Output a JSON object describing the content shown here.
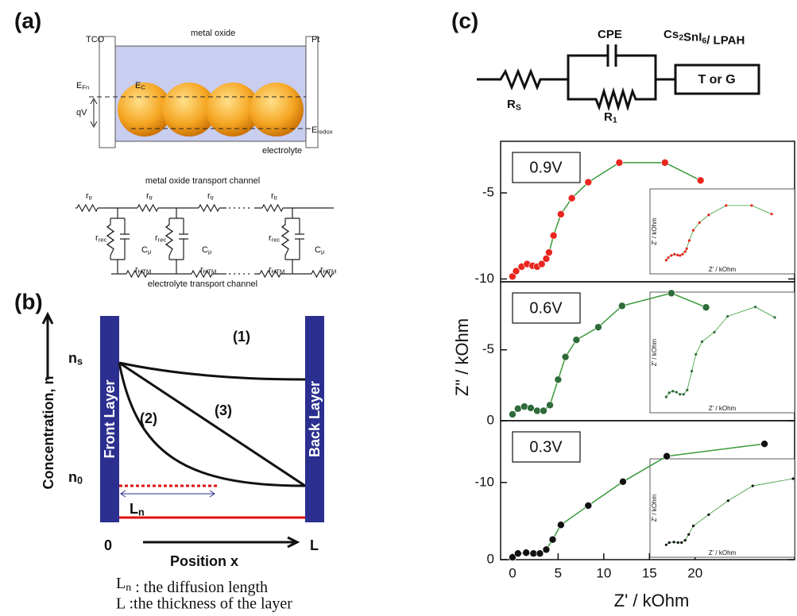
{
  "panel_a": {
    "tag": "(a)",
    "labels": [
      {
        "text": "TCO"
      },
      {
        "text": "metal oxide"
      },
      {
        "text": "Pt"
      },
      {
        "text": "E",
        "sub": "Fn"
      },
      {
        "text": "E",
        "sub": "C"
      },
      {
        "text": "qV"
      },
      {
        "text": "E",
        "sub": "redox"
      },
      {
        "text": "electrolyte"
      },
      {
        "text": "metal oxide transport channel"
      },
      {
        "text": "electrolyte transport channel"
      },
      {
        "text": "r",
        "sub": "tr"
      },
      {
        "text": "r",
        "sub": "tr"
      },
      {
        "text": "r",
        "sub": "tr"
      },
      {
        "text": "r",
        "sub": "tr"
      },
      {
        "text": "r",
        "sub": "rec"
      },
      {
        "text": "r",
        "sub": "rec"
      },
      {
        "text": "r",
        "sub": "rec"
      },
      {
        "text": "C",
        "sub": "μ"
      },
      {
        "text": "C",
        "sub": "μ"
      },
      {
        "text": "C",
        "sub": "μ"
      },
      {
        "text": "r",
        "sub": "HTM"
      },
      {
        "text": "r",
        "sub": "HTM"
      },
      {
        "text": "r",
        "sub": "HTM"
      },
      {
        "text": "r",
        "sub": "HTM"
      }
    ]
  },
  "panel_b": {
    "tag": "(b)",
    "ylabel": "Concentration, n",
    "n_s": {
      "text": "n",
      "sub": "s"
    },
    "n_0": {
      "text": "n",
      "sub": "0"
    },
    "front": "Front Layer",
    "back": "Back Layer",
    "curve_1": "(1)",
    "curve_2": "(2)",
    "curve_3": "(3)",
    "l_n": {
      "text": "L",
      "sub": "n"
    },
    "x_start": "0",
    "x_end": "L",
    "xlabel": "Position x",
    "note_1": [
      {
        "text": "L",
        "sub": "n"
      },
      {
        "text": " : the diffusion length"
      }
    ],
    "note_2": "L :the thickness of the layer"
  },
  "circuit": {
    "tag": "(c)",
    "cpe": "CPE",
    "material": [
      {
        "text": "Cs",
        "sub": "2"
      },
      {
        "text": "SnI",
        "sub": "6"
      },
      {
        "text": "/ LPAH"
      }
    ],
    "r_s": {
      "text": "R",
      "sub": "S"
    },
    "r_1": {
      "text": "R",
      "sub": "1"
    },
    "element": "T or G"
  },
  "figure_c": {
    "ylabel": "Z\" / kOhm",
    "xlabel": "Z' / kOhm",
    "inset_ylabel": "Z' / kOhm",
    "inset_xlabel": "Z' / kOhm"
  },
  "chart_data": [
    {
      "type": "scatter",
      "label": "0.9V",
      "xlim": [
        -1.3,
        30.9
      ],
      "ylim": [
        0,
        -7.9
      ],
      "yticks": [
        -5
      ],
      "series": [
        {
          "color": "#e8261e",
          "line_color": "#3a9a3a",
          "x": [
            0,
            0.4,
            1,
            1.6,
            2.2,
            2.7,
            3.2,
            3.7,
            4,
            4.5,
            5.3,
            6.5,
            8.3,
            11.7,
            16.7,
            20.6
          ],
          "values": [
            -0.3,
            -0.6,
            -0.85,
            -1,
            -0.9,
            -0.85,
            -1,
            -1.3,
            -1.65,
            -2.6,
            -3.8,
            -4.7,
            -5.6,
            -6.7,
            -6.7,
            -5.7
          ]
        }
      ]
    },
    {
      "type": "scatter",
      "label": "0.6V",
      "xlim": [
        -1.3,
        30.9
      ],
      "ylim": [
        0,
        -9.8
      ],
      "yticks": [
        0,
        -5,
        -10
      ],
      "series": [
        {
          "color": "#2e6b3a",
          "line_color": "#3a9a3a",
          "x": [
            0,
            0.6,
            1.3,
            2,
            2.7,
            3.4,
            4.1,
            5,
            5.8,
            7,
            9.4,
            12,
            17.4,
            21.2
          ],
          "values": [
            -0.45,
            -0.85,
            -1,
            -0.9,
            -0.7,
            -0.7,
            -1.1,
            -2.9,
            -4.5,
            -5.7,
            -6.6,
            -8.1,
            -9,
            -8
          ]
        }
      ]
    },
    {
      "type": "scatter",
      "label": "0.3V",
      "xlim": [
        -1.3,
        30.9
      ],
      "ylim": [
        0,
        -18
      ],
      "yticks": [
        0,
        -10
      ],
      "xticks": [
        0,
        5,
        10,
        15,
        20
      ],
      "series": [
        {
          "color": "#111111",
          "line_color": "#3a9a3a",
          "x": [
            0,
            0.6,
            1.5,
            2.3,
            3,
            3.7,
            4.4,
            5.3,
            8.3,
            12.1,
            16.9,
            27.6
          ],
          "values": [
            -0.3,
            -0.8,
            -0.9,
            -0.8,
            -0.8,
            -1.3,
            -2.6,
            -4.5,
            -7,
            -10.1,
            -13.4,
            -15
          ]
        }
      ]
    }
  ]
}
